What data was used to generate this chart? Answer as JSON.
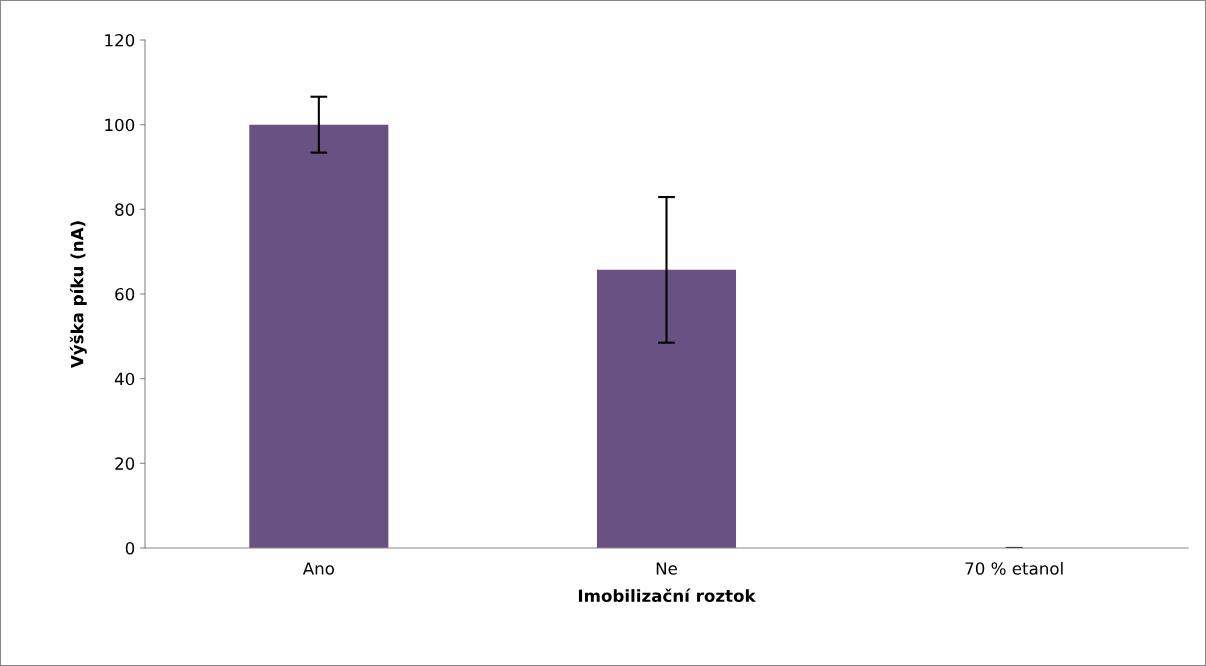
{
  "chart_data": {
    "type": "bar",
    "xlabel": "Imobilizační roztok",
    "ylabel": "Výška píku (nA)",
    "categories": [
      "Ano",
      "Ne",
      "70 % etanol"
    ],
    "values": [
      100,
      65.7,
      0
    ],
    "errors": [
      6.6,
      17.2,
      0
    ],
    "color": "#6a5184",
    "ylim": [
      0,
      120
    ],
    "yticks": [
      0,
      20,
      40,
      60,
      80,
      100,
      120
    ],
    "grid": false,
    "legend": false
  }
}
